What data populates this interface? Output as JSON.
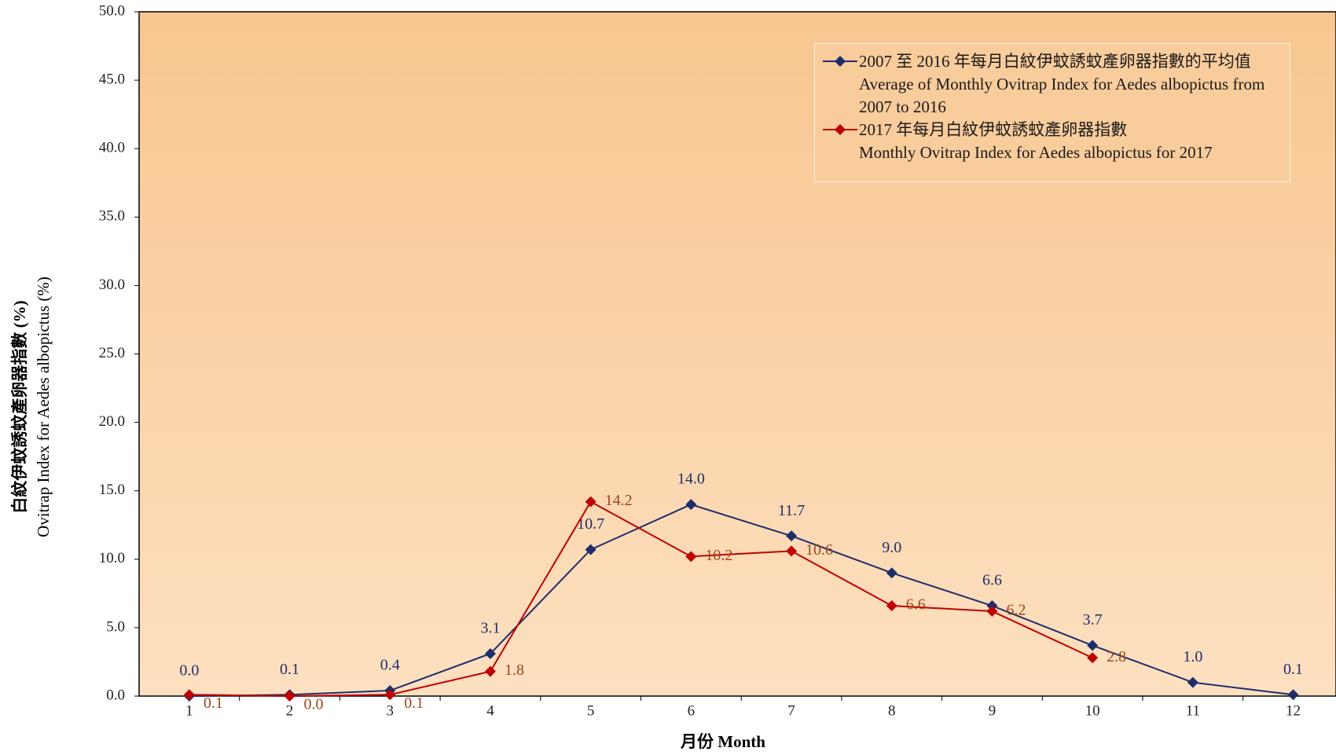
{
  "chart_data": {
    "type": "line",
    "x_label": "月份 Month",
    "y_label": [
      "白紋伊蚊誘蚊產卵器指數 (%)",
      "Ovitrap Index for Aedes albopictus (%)"
    ],
    "categories": [
      "1",
      "2",
      "3",
      "4",
      "5",
      "6",
      "7",
      "8",
      "9",
      "10",
      "11",
      "12"
    ],
    "series": [
      {
        "name": "2007 至 2016 年每月白紋伊蚊誘蚊產卵器指數的平均值\nAverage of Monthly Ovitrap Index  for Aedes albopictus from\n2007 to 2016",
        "color": "#1f2d6b",
        "values": [
          0.0,
          0.1,
          0.4,
          3.1,
          10.7,
          14.0,
          11.7,
          9.0,
          6.6,
          3.7,
          1.0,
          0.1
        ],
        "value_labels": [
          "0.0",
          "0.1",
          "0.4",
          "3.1",
          "10.7",
          "14.0",
          "11.7",
          "9.0",
          "6.6",
          "3.7",
          "1.0",
          "0.1"
        ]
      },
      {
        "name": "2017 年每月白紋伊蚊誘蚊產卵器指數\nMonthly Ovitrap Index for Aedes albopictus for 2017",
        "color": "#c00000",
        "values": [
          0.1,
          0.0,
          0.1,
          1.8,
          14.2,
          10.2,
          10.6,
          6.6,
          6.2,
          2.8,
          null,
          null
        ],
        "value_labels": [
          "0.1",
          "0.0",
          "0.1",
          "1.8",
          "14.2",
          "10.2",
          "10.6",
          "6.6",
          "6.2",
          "2.8",
          null,
          null
        ]
      }
    ],
    "ylim": [
      0,
      50
    ],
    "yticks": [
      {
        "value": 0,
        "label": "0.0"
      },
      {
        "value": 5,
        "label": "5.0"
      },
      {
        "value": 10,
        "label": "10.0"
      },
      {
        "value": 15,
        "label": "15.0"
      },
      {
        "value": 20,
        "label": "20.0"
      },
      {
        "value": 25,
        "label": "25.0"
      },
      {
        "value": 30,
        "label": "30.0"
      },
      {
        "value": 35,
        "label": "35.0"
      },
      {
        "value": 40,
        "label": "40.0"
      },
      {
        "value": 45,
        "label": "45.0"
      },
      {
        "value": 50,
        "label": "50.0"
      }
    ],
    "legend": "upper right"
  }
}
